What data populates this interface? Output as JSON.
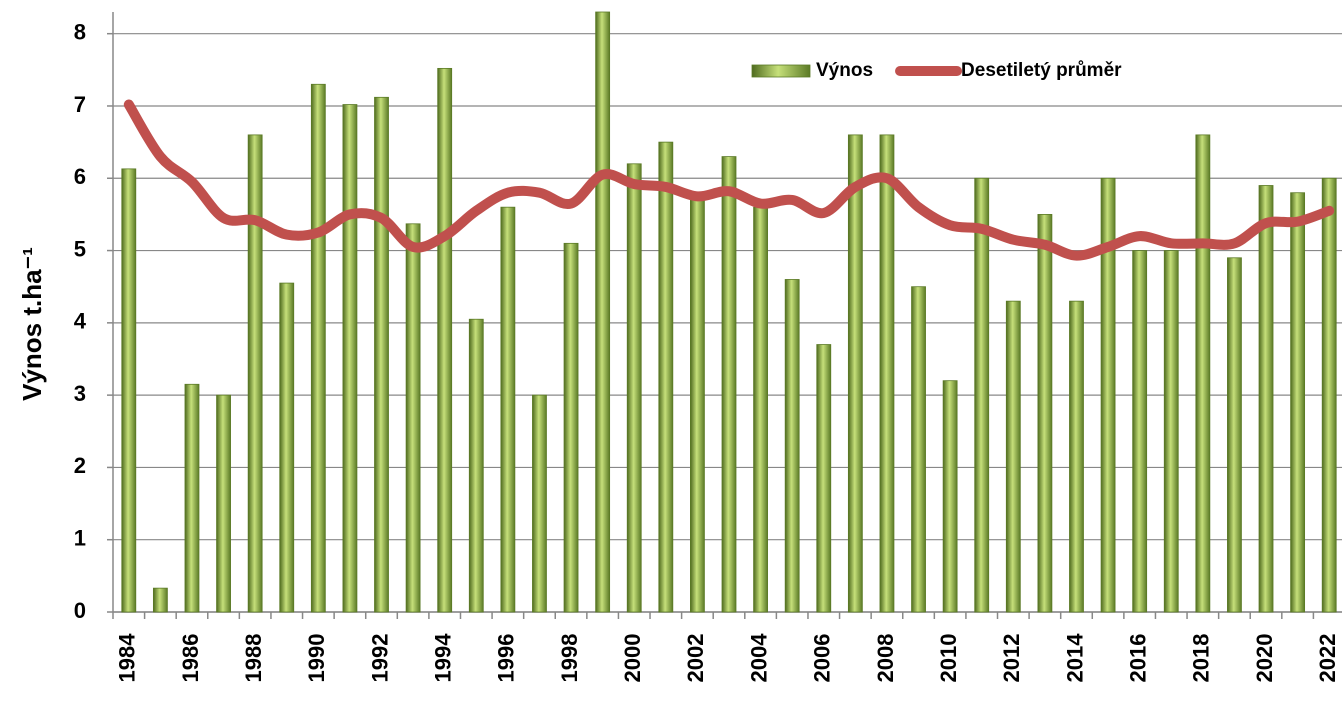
{
  "chart_data": {
    "type": "bar_line",
    "ylabel": "Výnos t.ha⁻¹",
    "categories": [
      "1984",
      null,
      "1986",
      null,
      "1988",
      null,
      "1990",
      null,
      "1992",
      null,
      "1994",
      null,
      "1996",
      null,
      "1998",
      null,
      "2000",
      null,
      "2002",
      null,
      "2004",
      null,
      "2006",
      null,
      "2008",
      null,
      "2010",
      null,
      "2012",
      null,
      "2014",
      null,
      "2016",
      null,
      "2018",
      null,
      "2020",
      null,
      "2022"
    ],
    "series": [
      {
        "name": "Výnos",
        "type": "bar",
        "color": "#9bbb59",
        "values": [
          6.13,
          0.33,
          3.15,
          3.0,
          6.6,
          4.55,
          7.3,
          7.02,
          7.12,
          5.37,
          7.52,
          4.05,
          5.6,
          3.0,
          5.1,
          8.3,
          6.2,
          6.5,
          5.7,
          6.3,
          5.6,
          4.6,
          3.7,
          6.6,
          6.6,
          4.5,
          3.2,
          6.0,
          4.3,
          5.5,
          4.3,
          6.0,
          5.0,
          5.0,
          6.6,
          4.9,
          5.9,
          5.8,
          6.0
        ]
      },
      {
        "name": "Desetiletý průměr",
        "type": "line",
        "color": "#c0504d",
        "values": [
          7.02,
          6.3,
          5.95,
          5.45,
          5.42,
          5.22,
          5.25,
          5.5,
          5.45,
          5.05,
          5.2,
          5.55,
          5.8,
          5.8,
          5.65,
          6.05,
          5.92,
          5.88,
          5.75,
          5.82,
          5.65,
          5.7,
          5.52,
          5.88,
          6.0,
          5.6,
          5.35,
          5.3,
          5.15,
          5.08,
          4.93,
          5.05,
          5.2,
          5.1,
          5.1,
          5.1,
          5.38,
          5.4,
          5.55
        ]
      }
    ],
    "ylim": [
      0,
      8.3
    ],
    "yticks": [
      0,
      1,
      2,
      3,
      4,
      5,
      6,
      7,
      8
    ],
    "grid": true,
    "legend": "top-right"
  }
}
